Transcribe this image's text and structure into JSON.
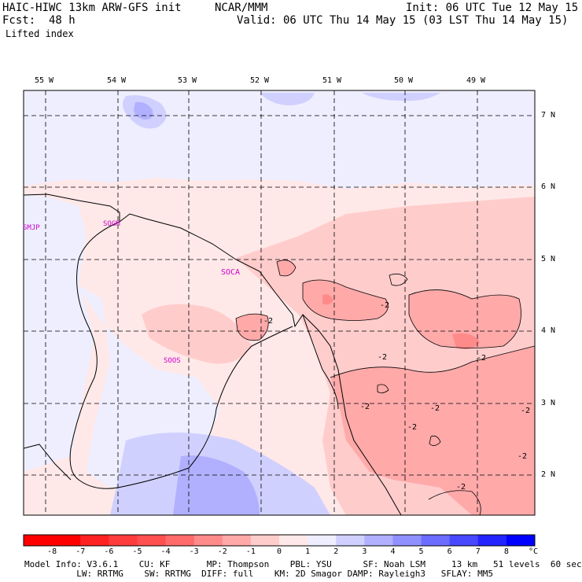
{
  "header": {
    "model": "HAIC-HIWC 13km ARW-GFS init",
    "org": "NCAR/MMM",
    "init": "Init: 06 UTC Tue 12 May 15",
    "fcst_label": "Fcst:",
    "fcst_value": "48 h",
    "valid": "Valid: 06 UTC Thu 14 May 15 (03 LST Thu 14 May 15)",
    "field": "Lifted index"
  },
  "map": {
    "lon_labels": [
      "55 W",
      "54 W",
      "53 W",
      "52 W",
      "51 W",
      "50 W",
      "49 W"
    ],
    "lat_labels": [
      "7 N",
      "6 N",
      "5 N",
      "4 N",
      "3 N",
      "2 N"
    ],
    "stations": [
      "SMJP",
      "SOGM",
      "SOCA",
      "SOOS"
    ],
    "contour_labels": [
      "-2",
      "-2",
      "-2",
      "-2",
      "-2",
      "-2",
      "-2",
      "-2",
      "-2",
      "-2"
    ]
  },
  "colorbar": {
    "ticks": [
      "-8",
      "-7",
      "-6",
      "-5",
      "-4",
      "-3",
      "-2",
      "-1",
      "0",
      "1",
      "2",
      "3",
      "4",
      "5",
      "6",
      "7",
      "8"
    ],
    "unit": "°C",
    "colors": [
      "#ff0000",
      "#ff2222",
      "#ff3c3c",
      "#ff5050",
      "#ff6a6a",
      "#ff8a8a",
      "#ffa9a9",
      "#ffcccc",
      "#ffe8e8",
      "#eeeeff",
      "#d0d0ff",
      "#b0b0ff",
      "#9090ff",
      "#6c6cff",
      "#4848ff",
      "#2424ff",
      "#0000ff"
    ]
  },
  "footer": {
    "line1": "Model Info: V3.6.1    CU: KF       MP: Thompson    PBL: YSU      SF: Noah LSM     13 km   51 levels  60 sec",
    "line2": "          LW: RRTMG    SW: RRTMG  DIFF: full    KM: 2D Smagor DAMP: Rayleigh3   SFLAY: MM5"
  }
}
